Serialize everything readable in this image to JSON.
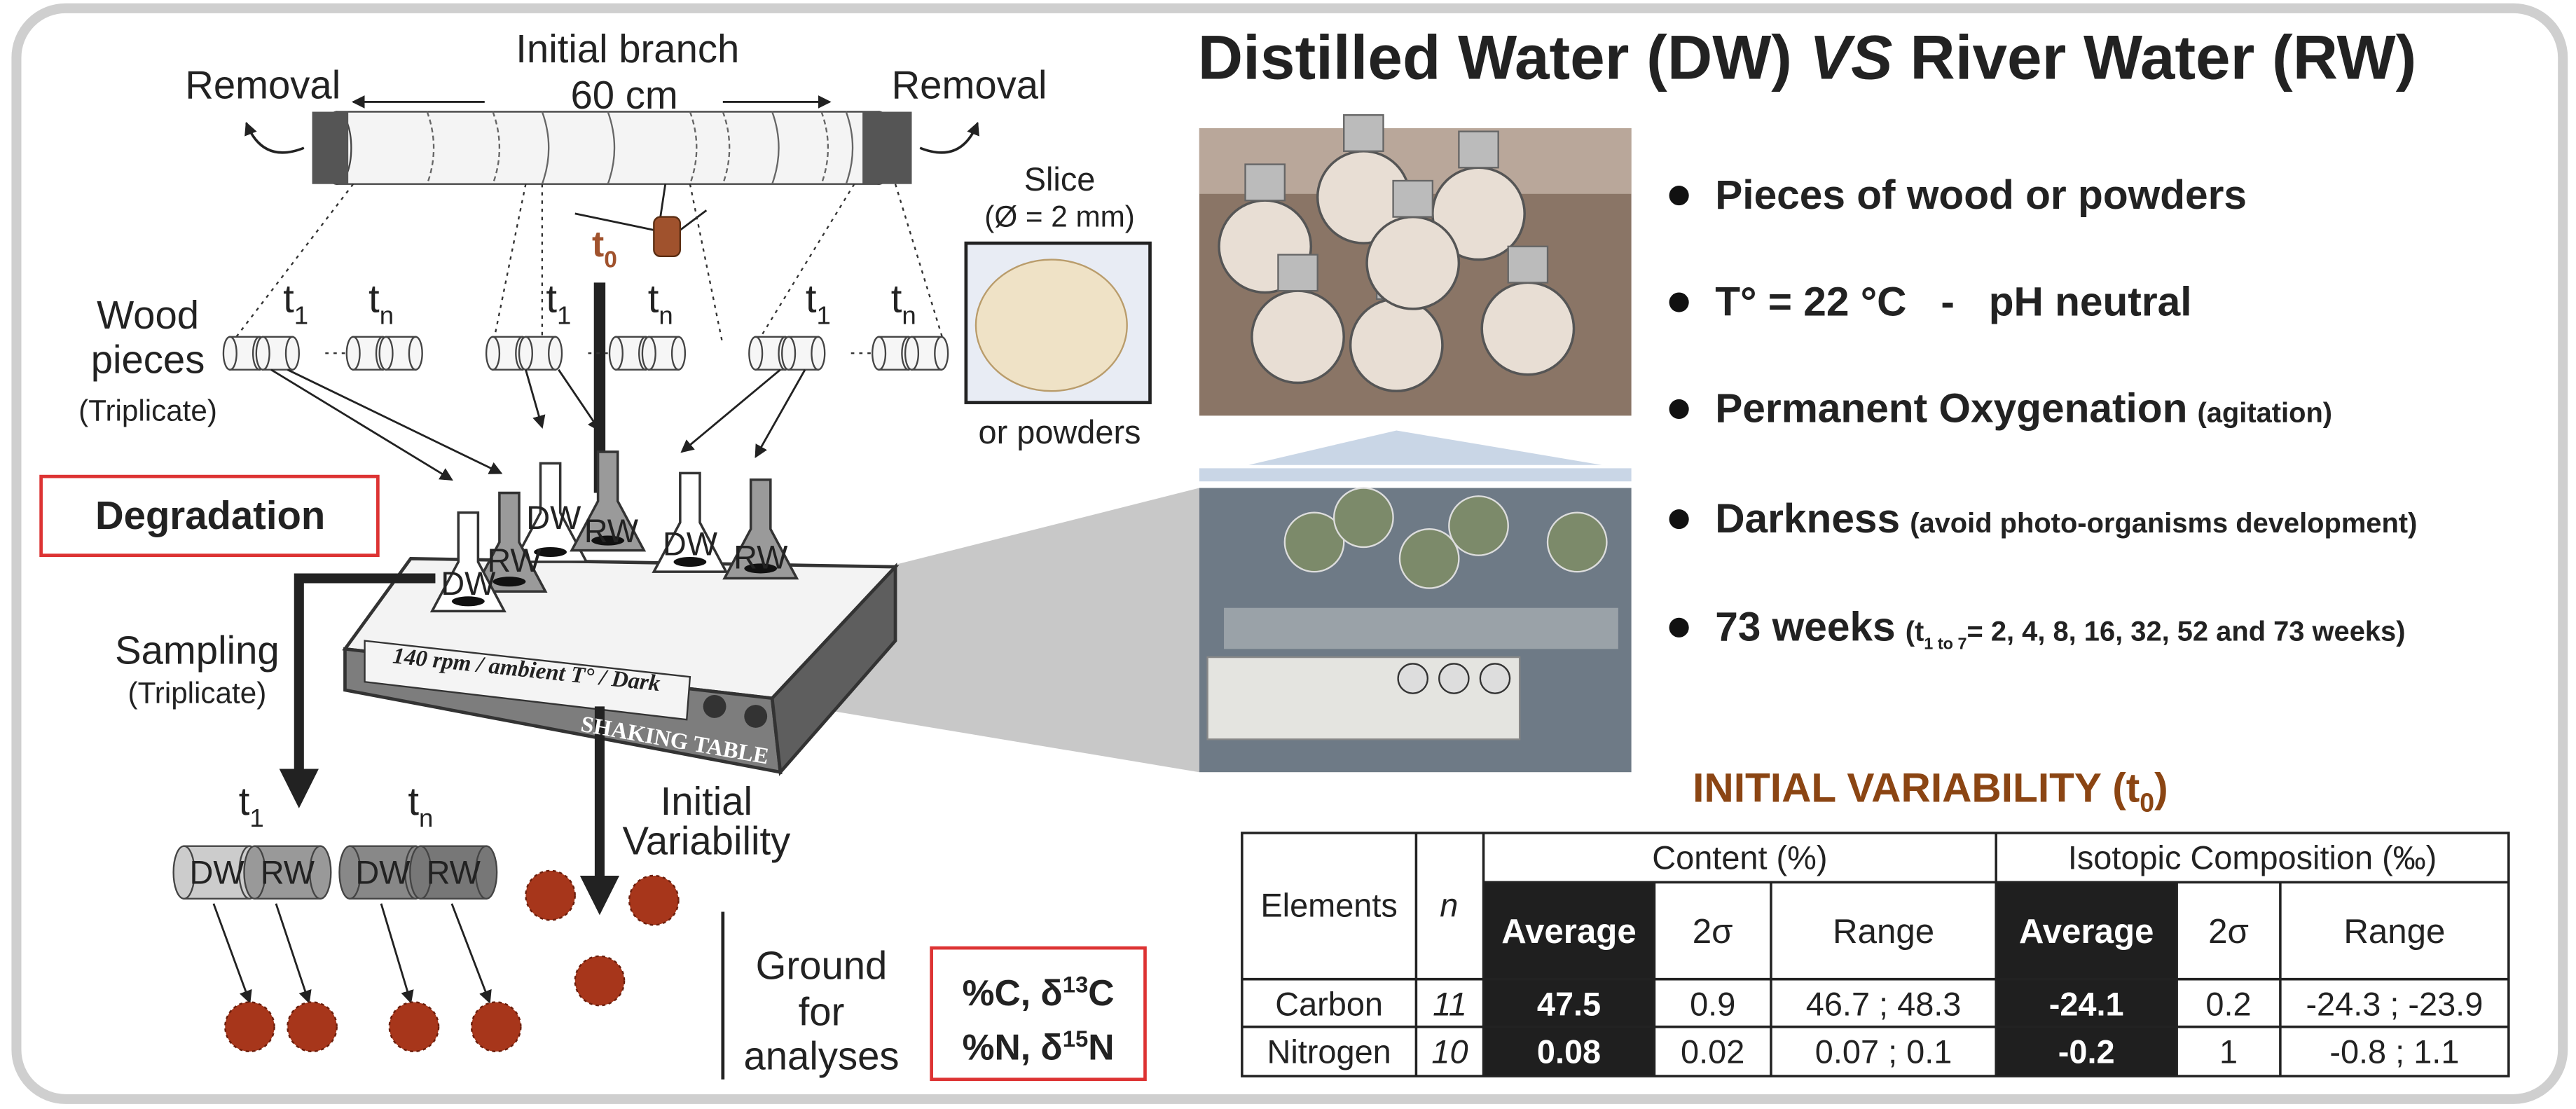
{
  "title": {
    "part1": "Distilled Water (DW) ",
    "vs": "VS",
    "part2": " River Water (RW)"
  },
  "diagram": {
    "branch_label": "Initial branch",
    "branch_length": "60 cm",
    "removal_left": "Removal",
    "removal_right": "Removal",
    "t0": {
      "base": "t",
      "sub": "0"
    },
    "slice": "Slice",
    "slice_size": "(Ø = 2 mm)",
    "or_powders": "or powders",
    "wood_pieces": [
      "Wood",
      "pieces"
    ],
    "wood_triplicate": "(Triplicate)",
    "time_labels": [
      {
        "base": "t",
        "sub": "1"
      },
      {
        "base": "t",
        "sub": "n"
      },
      {
        "base": "t",
        "sub": "1"
      },
      {
        "base": "t",
        "sub": "n"
      },
      {
        "base": "t",
        "sub": "1"
      },
      {
        "base": "t",
        "sub": "n"
      }
    ],
    "degradation": "Degradation",
    "flasks": [
      "DW",
      "RW",
      "DW",
      "RW",
      "DW",
      "RW"
    ],
    "shaker_label": "140 rpm / ambient T° / Dark",
    "shaking_table": "SHAKING TABLE",
    "sampling": "Sampling",
    "sampling_triplicate": "(Triplicate)",
    "sample_times": [
      {
        "base": "t",
        "sub": "1"
      },
      {
        "base": "t",
        "sub": "n"
      }
    ],
    "sample_labels": [
      "DW",
      "RW",
      "DW",
      "RW"
    ],
    "initial_variability": [
      "Initial",
      "Variability"
    ],
    "ground": [
      "Ground",
      "for",
      "analyses"
    ],
    "analyses": [
      {
        "pre": "%C, δ",
        "sup": "13",
        "post": "C"
      },
      {
        "pre": "%N, δ",
        "sup": "15",
        "post": "N"
      }
    ]
  },
  "conditions": [
    {
      "main": "Pieces of wood or powders"
    },
    {
      "main": "T° = 22 °C   -   pH neutral"
    },
    {
      "main": "Permanent Oxygenation",
      "note": "(agitation)"
    },
    {
      "main": "Darkness",
      "note": "(avoid photo-organisms development)"
    },
    {
      "main": "73 weeks",
      "note_pre": "(t",
      "note_sub": "1 to 7",
      "note_post": "= 2, 4, 8, 16, 32, 52 and 73 weeks)"
    }
  ],
  "table": {
    "title": {
      "pre": "INITIAL VARIABILITY (t",
      "sub": "0",
      "post": ")"
    },
    "header": {
      "elements": "Elements",
      "n": "n",
      "content": "Content (%)",
      "isotopic": "Isotopic Composition (‰)",
      "sub": [
        "Average",
        "2σ",
        "Range",
        "Average",
        "2σ",
        "Range"
      ]
    },
    "rows": [
      [
        "Carbon",
        11,
        47.5,
        0.9,
        "46.7 ; 48.3",
        -24.1,
        0.2,
        "-24.3 ; -23.9"
      ],
      [
        "Nitrogen",
        10,
        0.08,
        0.02,
        "0.07 ; 0.1",
        -0.2,
        1,
        "-0.8 ; 1.1"
      ]
    ]
  }
}
